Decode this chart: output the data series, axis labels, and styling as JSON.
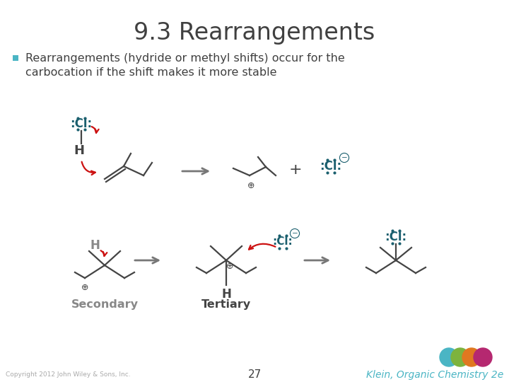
{
  "title": "9.3 Rearrangements",
  "bullet_line1": "Rearrangements (hydride or methyl shifts) occur for the",
  "bullet_line2": "carbocation if the shift makes it more stable",
  "bullet_color": "#4ab5c4",
  "title_color": "#404040",
  "text_color": "#404040",
  "secondary_label": "Secondary",
  "tertiary_label": "Tertiary",
  "label_color": "#888888",
  "copyright": "Copyright 2012 John Wiley & Sons, Inc.",
  "page_num": "27",
  "footer_text": "Klein, Organic Chemistry 2e",
  "footer_color": "#4ab5c4",
  "bg_color": "#ffffff",
  "red_arrow": "#cc1111",
  "dark_gray": "#444444",
  "cl_color": "#1a5f6e",
  "logo_colors": [
    "#4ab5c4",
    "#7db33e",
    "#e07820",
    "#b52870"
  ]
}
